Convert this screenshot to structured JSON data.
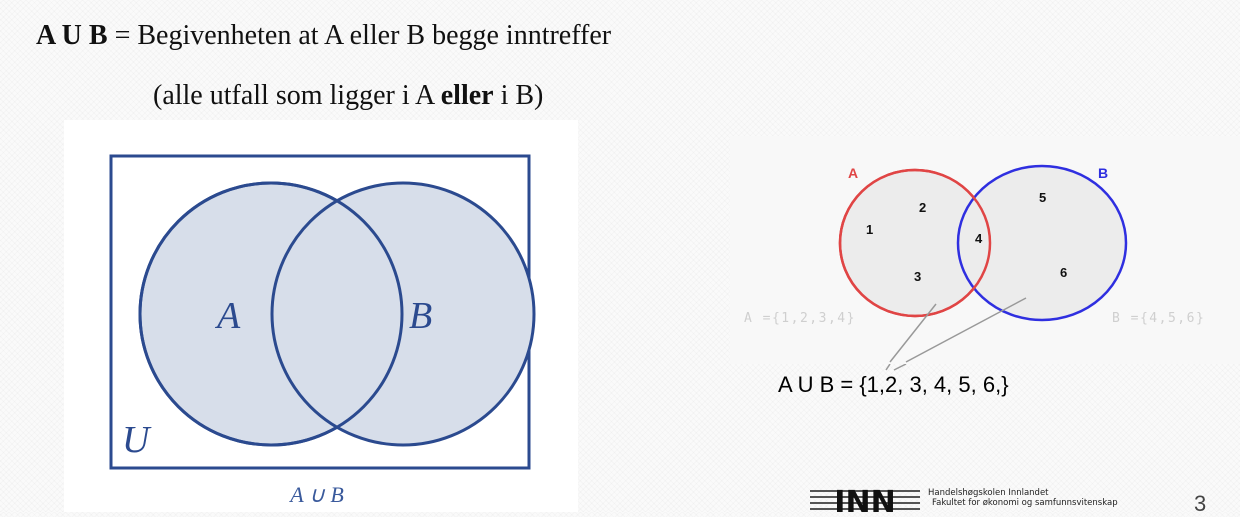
{
  "heading": {
    "bold_term": "A U B",
    "definition": "= Begivenheten at A eller B begge inntreffer"
  },
  "subheading": {
    "prefix": "(alle utfall som ligger i A ",
    "bold_word": "eller",
    "suffix": " i B)"
  },
  "left_diagram": {
    "set_a_label": "A",
    "set_b_label": "B",
    "universe_label": "U",
    "caption": "A ∪ B",
    "colors": {
      "outline": "#2b4a8f",
      "fill": "#d7deea",
      "caption": "#3a5a9c"
    }
  },
  "right_diagram": {
    "set_a_label": "A",
    "set_b_label": "B",
    "elements_a_only": [
      "1",
      "2",
      "3"
    ],
    "elements_intersection": [
      "4"
    ],
    "elements_b_only": [
      "5",
      "6"
    ],
    "set_a_notation": "A ={1,2,3,4}",
    "set_b_notation": "B ={4,5,6}",
    "union_result": "A U B = {1,2, 3, 4, 5, 6,}",
    "colors": {
      "set_a": "#e04545",
      "set_b": "#2f2fe0",
      "fill": "#ececec",
      "notation": "#cfcfcf"
    }
  },
  "footer": {
    "logo_text": "INN",
    "institution": "Handelshøgskolen Innlandet",
    "faculty": "Fakultet for økonomi og samfunnsvitenskap",
    "page_number": "3"
  }
}
